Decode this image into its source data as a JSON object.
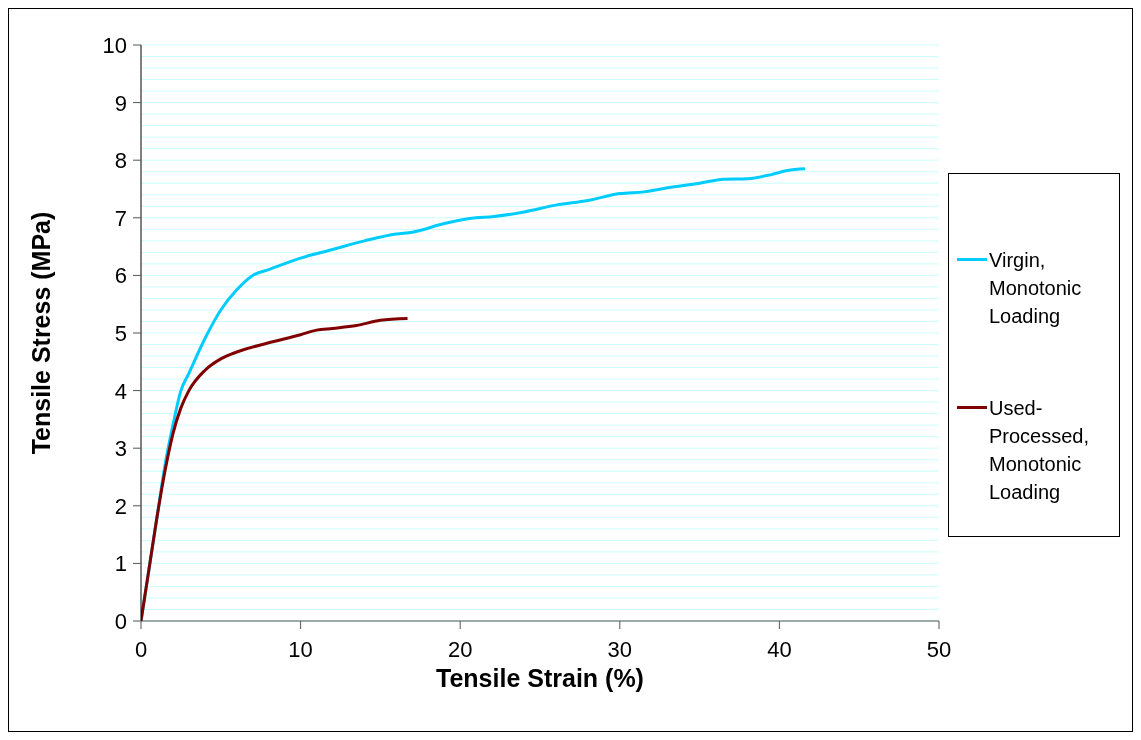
{
  "chart_data": {
    "type": "line",
    "xlabel": "Tensile Strain (%)",
    "ylabel": "Tensile Stress (MPa)",
    "xlim": [
      0,
      50
    ],
    "xticks": [
      0,
      10,
      20,
      30,
      40,
      50
    ],
    "ylim": [
      0,
      10
    ],
    "yticks": [
      0,
      {
        "value": 0.2,
        "label": null
      },
      {
        "value": 0.4,
        "label": null
      },
      {
        "value": 0.6,
        "label": null
      },
      {
        "value": 0.8,
        "label": null
      },
      1,
      {
        "value": 1.2,
        "label": null
      },
      {
        "value": 1.4,
        "label": null
      },
      {
        "value": 1.6,
        "label": null
      },
      {
        "value": 1.8,
        "label": null
      },
      2,
      {
        "value": 2.2,
        "label": null
      },
      {
        "value": 2.4,
        "label": null
      },
      {
        "value": 2.6,
        "label": null
      },
      {
        "value": 2.8,
        "label": null
      },
      3,
      {
        "value": 3.2,
        "label": null
      },
      {
        "value": 3.4,
        "label": null
      },
      {
        "value": 3.6,
        "label": null
      },
      {
        "value": 3.8,
        "label": null
      },
      4,
      {
        "value": 4.2,
        "label": null
      },
      {
        "value": 4.4,
        "label": null
      },
      {
        "value": 4.6,
        "label": null
      },
      {
        "value": 4.8,
        "label": null
      },
      5,
      {
        "value": 5.2,
        "label": null
      },
      {
        "value": 5.4,
        "label": null
      },
      {
        "value": 5.6,
        "label": null
      },
      {
        "value": 5.8,
        "label": null
      },
      6,
      {
        "value": 6.2,
        "label": null
      },
      {
        "value": 6.4,
        "label": null
      },
      {
        "value": 6.6,
        "label": null
      },
      {
        "value": 6.8,
        "label": null
      },
      7,
      {
        "value": 7.2,
        "label": null
      },
      {
        "value": 7.4,
        "label": null
      },
      {
        "value": 7.6,
        "label": null
      },
      {
        "value": 7.8,
        "label": null
      },
      8,
      {
        "value": 8.2,
        "label": null
      },
      {
        "value": 8.4,
        "label": null
      },
      {
        "value": 8.6,
        "label": null
      },
      {
        "value": 8.8,
        "label": null
      },
      9,
      {
        "value": 9.2,
        "label": null
      },
      {
        "value": 9.4,
        "label": null
      },
      {
        "value": 9.6,
        "label": null
      },
      {
        "value": 9.8,
        "label": null
      },
      10
    ],
    "grid": "y",
    "legend": "right",
    "marker": "none",
    "line_style": "solid",
    "series": [
      {
        "name": "Virgin, Monotonic Loading",
        "color": "#00ccff",
        "x": [
          0,
          1,
          1.5,
          2,
          2.5,
          3,
          4,
          5,
          6,
          7,
          8,
          10,
          12,
          14,
          16,
          17,
          19,
          21,
          22,
          24,
          26,
          28,
          30,
          31.5,
          33,
          35,
          36.5,
          38,
          39.5,
          40.5,
          41.6
        ],
        "values": [
          0,
          1.8,
          2.7,
          3.4,
          4.0,
          4.3,
          4.9,
          5.4,
          5.75,
          6.0,
          6.1,
          6.3,
          6.45,
          6.6,
          6.72,
          6.75,
          6.9,
          7.0,
          7.02,
          7.1,
          7.22,
          7.3,
          7.42,
          7.45,
          7.52,
          7.6,
          7.67,
          7.68,
          7.75,
          7.82,
          7.85
        ]
      },
      {
        "name": "Used-Processed, Monotonic Loading",
        "color": "#800000",
        "x": [
          0,
          0.5,
          1,
          1.5,
          2,
          2.5,
          3,
          4,
          5,
          6,
          8,
          10,
          11,
          12,
          13.5,
          15,
          16.7
        ],
        "values": [
          0,
          0.9,
          1.8,
          2.6,
          3.25,
          3.7,
          4.0,
          4.35,
          4.55,
          4.67,
          4.83,
          4.97,
          5.05,
          5.08,
          5.13,
          5.22,
          5.25
        ]
      }
    ]
  }
}
